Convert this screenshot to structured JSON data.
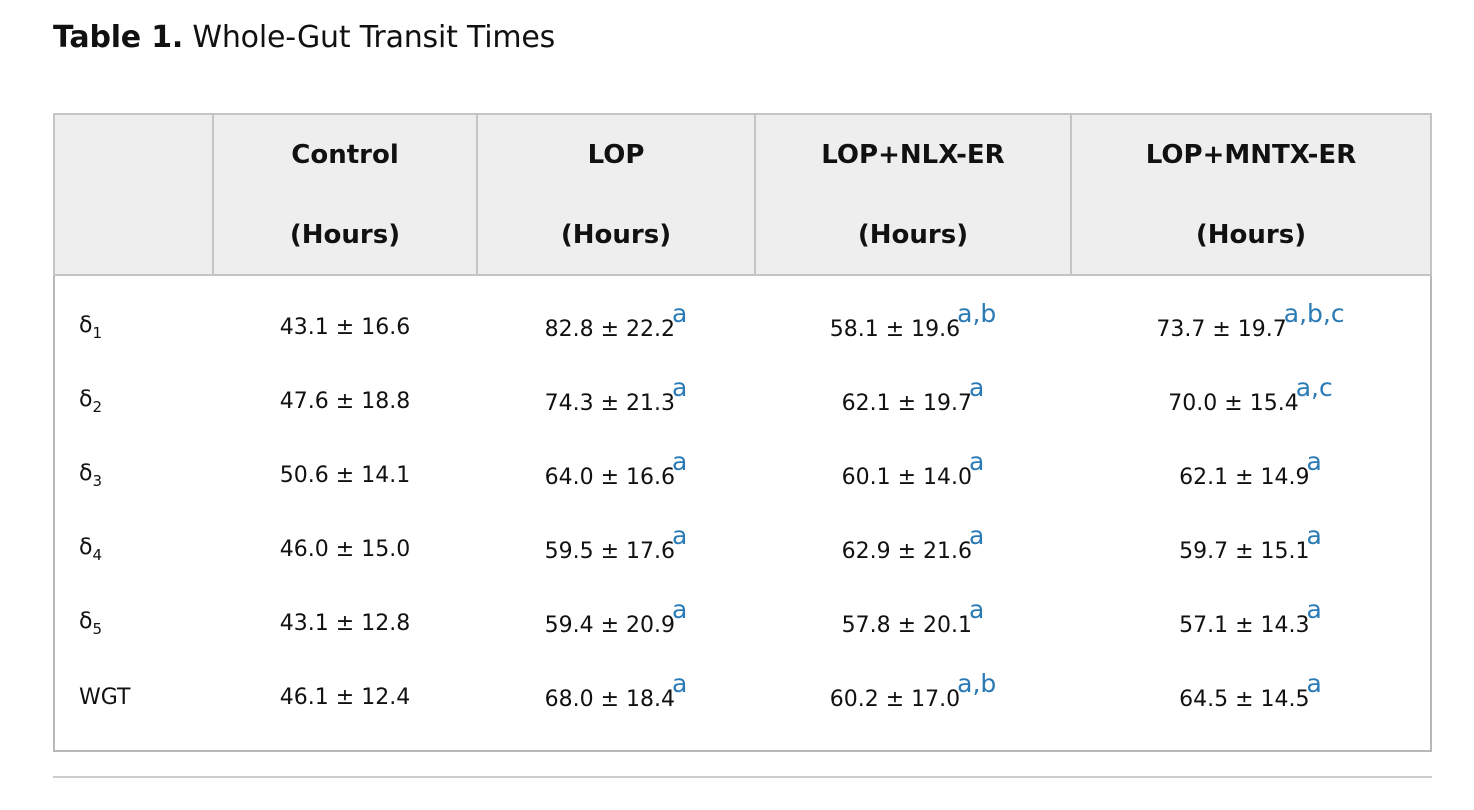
{
  "caption": {
    "label": "Table 1.",
    "title": "Whole-Gut Transit Times"
  },
  "table": {
    "headers": [
      {
        "name": "",
        "unit": ""
      },
      {
        "name": "Control",
        "unit": "(Hours)"
      },
      {
        "name": "LOP",
        "unit": "(Hours)"
      },
      {
        "name": "LOP+NLX-ER",
        "unit": "(Hours)"
      },
      {
        "name": "LOP+MNTX-ER",
        "unit": "(Hours)"
      }
    ],
    "rows": [
      {
        "label": "δ",
        "sub": "1",
        "cells": [
          {
            "value": "43.1 ± 16.6",
            "sup": ""
          },
          {
            "value": "82.8 ± 22.2",
            "sup": "a"
          },
          {
            "value": "58.1 ± 19.6",
            "sup": "a,b"
          },
          {
            "value": "73.7 ± 19.7",
            "sup": "a,b,c"
          }
        ]
      },
      {
        "label": "δ",
        "sub": "2",
        "cells": [
          {
            "value": "47.6 ± 18.8",
            "sup": ""
          },
          {
            "value": "74.3 ± 21.3",
            "sup": "a"
          },
          {
            "value": "62.1 ± 19.7",
            "sup": "a"
          },
          {
            "value": "70.0 ± 15.4",
            "sup": "a,c"
          }
        ]
      },
      {
        "label": "δ",
        "sub": "3",
        "cells": [
          {
            "value": "50.6 ± 14.1",
            "sup": ""
          },
          {
            "value": "64.0 ± 16.6",
            "sup": "a"
          },
          {
            "value": "60.1 ± 14.0",
            "sup": "a"
          },
          {
            "value": "62.1 ± 14.9",
            "sup": "a"
          }
        ]
      },
      {
        "label": "δ",
        "sub": "4",
        "cells": [
          {
            "value": "46.0 ± 15.0",
            "sup": ""
          },
          {
            "value": "59.5 ± 17.6",
            "sup": "a"
          },
          {
            "value": "62.9 ± 21.6",
            "sup": "a"
          },
          {
            "value": "59.7 ± 15.1",
            "sup": "a"
          }
        ]
      },
      {
        "label": "δ",
        "sub": "5",
        "cells": [
          {
            "value": "43.1 ± 12.8",
            "sup": ""
          },
          {
            "value": "59.4 ± 20.9",
            "sup": "a"
          },
          {
            "value": "57.8 ± 20.1",
            "sup": "a"
          },
          {
            "value": "57.1 ± 14.3",
            "sup": "a"
          }
        ]
      },
      {
        "label": "WGT",
        "sub": "",
        "cells": [
          {
            "value": "46.1 ± 12.4",
            "sup": ""
          },
          {
            "value": "68.0 ± 18.4",
            "sup": "a"
          },
          {
            "value": "60.2 ± 17.0",
            "sup": "a,b"
          },
          {
            "value": "64.5 ± 14.5",
            "sup": "a"
          }
        ]
      }
    ]
  },
  "colors": {
    "footnote_link": "#2a7ab5",
    "header_bg": "#eeeeee",
    "border": "#b8b8b8"
  }
}
